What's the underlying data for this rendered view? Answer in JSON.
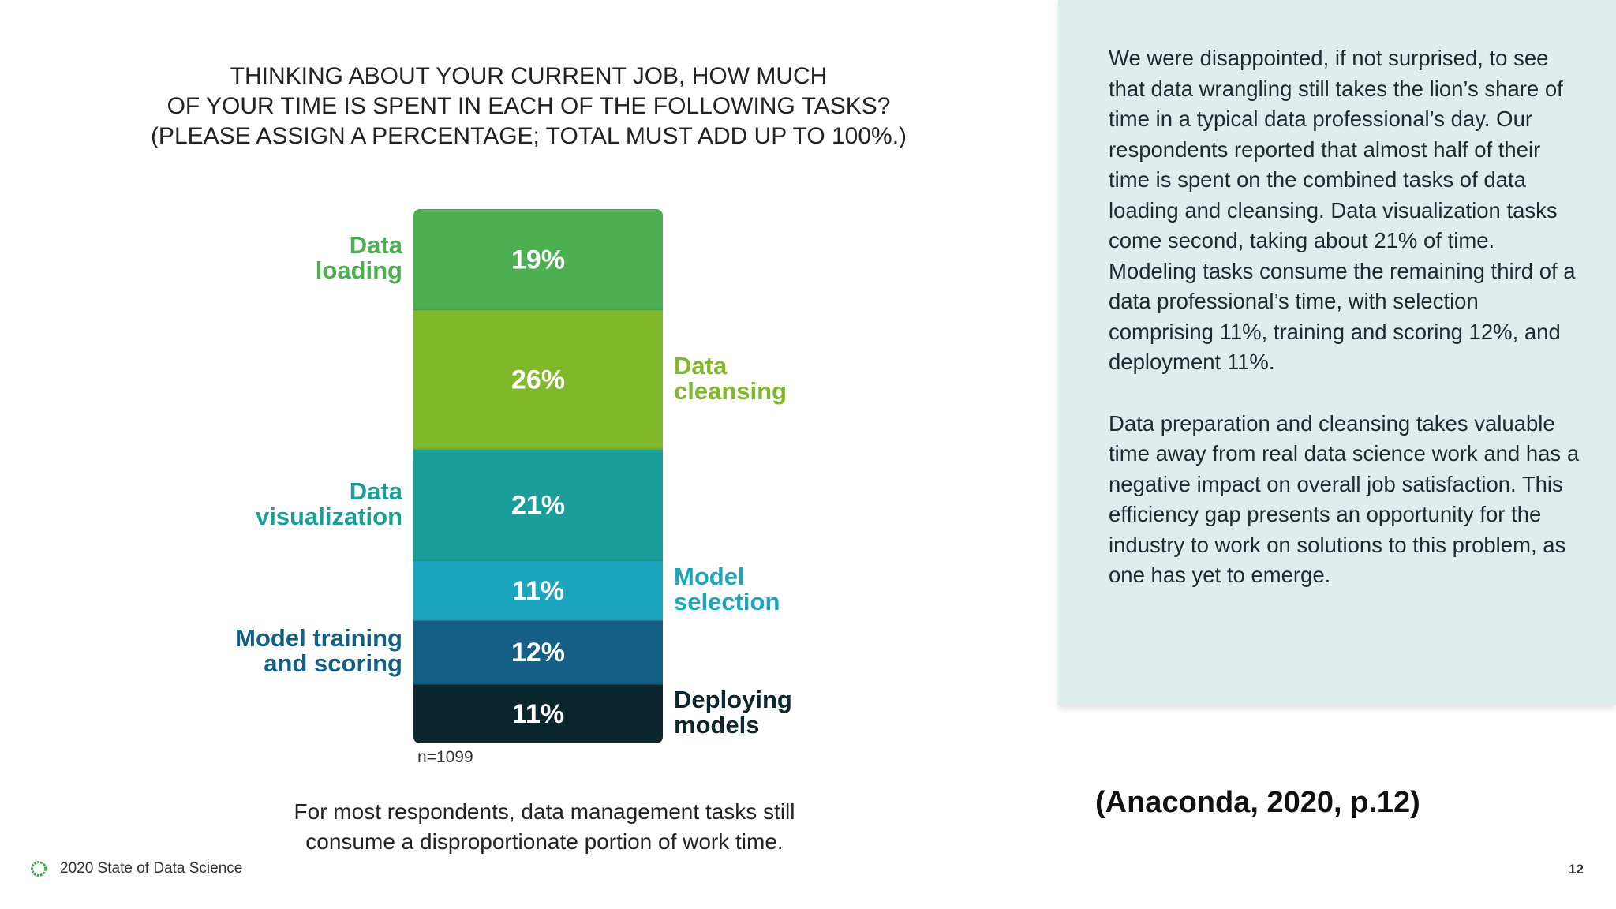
{
  "question": {
    "lines": [
      "THINKING ABOUT YOUR CURRENT JOB, HOW MUCH",
      "OF YOUR TIME IS SPENT IN EACH OF THE FOLLOWING TASKS?",
      "(PLEASE ASSIGN A PERCENTAGE; TOTAL MUST ADD UP TO 100%.)"
    ]
  },
  "chart_data": {
    "type": "bar",
    "stacked": true,
    "orientation": "vertical-stack",
    "unit": "%",
    "segments": [
      {
        "label_lines": [
          "Data",
          "loading"
        ],
        "value": 19,
        "value_label": "19%",
        "color": "#4caf50",
        "label_side": "left"
      },
      {
        "label_lines": [
          "Data",
          "cleansing"
        ],
        "value": 26,
        "value_label": "26%",
        "color": "#80b82b",
        "label_side": "right"
      },
      {
        "label_lines": [
          "Data",
          "visualization"
        ],
        "value": 21,
        "value_label": "21%",
        "color": "#1a9e9a",
        "label_side": "left"
      },
      {
        "label_lines": [
          "Model",
          "selection"
        ],
        "value": 11,
        "value_label": "11%",
        "color": "#1ba5bf",
        "label_side": "right"
      },
      {
        "label_lines": [
          "Model training",
          "and scoring"
        ],
        "value": 12,
        "value_label": "12%",
        "color": "#135f86",
        "label_side": "left"
      },
      {
        "label_lines": [
          "Deploying",
          "models"
        ],
        "value": 11,
        "value_label": "11%",
        "color": "#0c2630",
        "label_side": "right"
      }
    ],
    "n_label": "n=1099"
  },
  "caption": {
    "lines": [
      "For most respondents, data management tasks still",
      "consume a disproportionate portion of work time."
    ]
  },
  "side_panel": {
    "paragraphs": [
      "We were disappointed, if not surprised, to see that data wrangling still takes the lion’s share of time in a typical data professional’s day. Our respondents reported that almost half of their time is spent on the combined tasks of data loading and cleansing. Data visualization tasks come second, taking about 21% of time. Modeling tasks consume the remaining third of a data professional’s time, with selection comprising 11%, training and scoring 12%, and deployment 11%.",
      "Data preparation and cleansing takes valuable time away from real data science work and has a negative impact on overall job satisfaction. This efficiency gap presents an opportunity for the industry to work on solutions to this problem, as one has yet to emerge."
    ]
  },
  "citation": "(Anaconda, 2020, p.12)",
  "footer": {
    "report_title": "2020 State of Data Science",
    "logo_icon": "anaconda-ring-icon",
    "page_number": "12"
  }
}
